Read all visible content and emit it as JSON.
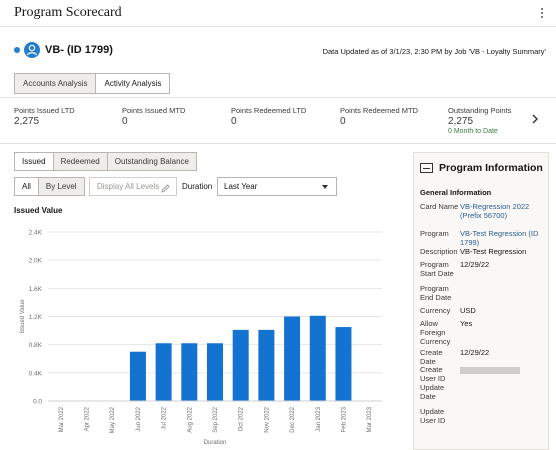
{
  "page": {
    "title": "Program Scorecard"
  },
  "header": {
    "name": "VB- (ID 1799)",
    "updated": "Data Updated as of 3/1/23, 2:30 PM by Job 'VB - Loyalty Summary'"
  },
  "tabs": [
    {
      "label": "Accounts Analysis",
      "active": false
    },
    {
      "label": "Activity Analysis",
      "active": true
    }
  ],
  "metrics": [
    {
      "label": "Points Issued LTD",
      "value": "2,275"
    },
    {
      "label": "Points Issued MTD",
      "value": "0"
    },
    {
      "label": "Points Redeemed LTD",
      "value": "0"
    },
    {
      "label": "Points Redeemed MTD",
      "value": "0"
    },
    {
      "label": "Outstanding Points",
      "value": "2,275",
      "sub": "0 Month to Date"
    }
  ],
  "segments": [
    "Issued",
    "Redeemed",
    "Outstanding Balance"
  ],
  "level_toggle": [
    "All",
    "By Level"
  ],
  "display_all_levels": "Display All Levels",
  "duration": {
    "label": "Duration",
    "value": "Last Year"
  },
  "chart_title": "Issued Value",
  "chart_data": {
    "type": "bar",
    "categories": [
      "Mar 2022",
      "Apr 2022",
      "May 2022",
      "Jun 2022",
      "Jul 2022",
      "Aug 2022",
      "Sep 2022",
      "Oct 2022",
      "Nov 2022",
      "Dec 2022",
      "Jan 2023",
      "Feb 2023",
      "Mar 2023"
    ],
    "values": [
      0,
      0,
      0,
      700,
      820,
      820,
      820,
      1010,
      1010,
      1200,
      1210,
      1050,
      0
    ],
    "title": "",
    "xlabel": "Duration",
    "ylabel": "Issued Value",
    "ylim": [
      0,
      2400
    ],
    "yticks": [
      "0.0",
      "0.4K",
      "0.8K",
      "1.2K",
      "1.6K",
      "2.0K",
      "2.4K"
    ],
    "grid": true,
    "bar_color": "#1473d1"
  },
  "panel": {
    "title": "Program Information",
    "section": "General Information",
    "rows": [
      {
        "key": "Card Name",
        "value": "VB-Regression 2022 (Prefix 56700)"
      },
      {
        "key": "Program",
        "value": "VB-Test Regression (ID 1799)"
      },
      {
        "key": "Description",
        "value": "VB-Test Regression"
      },
      {
        "key": "Program Start Date",
        "value": "12/29/22"
      },
      {
        "key": "Program End Date",
        "value": ""
      },
      {
        "key": "Currency",
        "value": "USD"
      },
      {
        "key": "Allow Foreign Currency",
        "value": "Yes"
      },
      {
        "key": "Create Date",
        "value": "12/29/22"
      },
      {
        "key": "Create User ID",
        "value": ""
      },
      {
        "key": "Update Date",
        "value": ""
      },
      {
        "key": "Update User ID",
        "value": ""
      }
    ]
  },
  "colors": {
    "accent": "#227ecf",
    "positive": "#3a7d3a",
    "link": "#2c5c8c"
  }
}
